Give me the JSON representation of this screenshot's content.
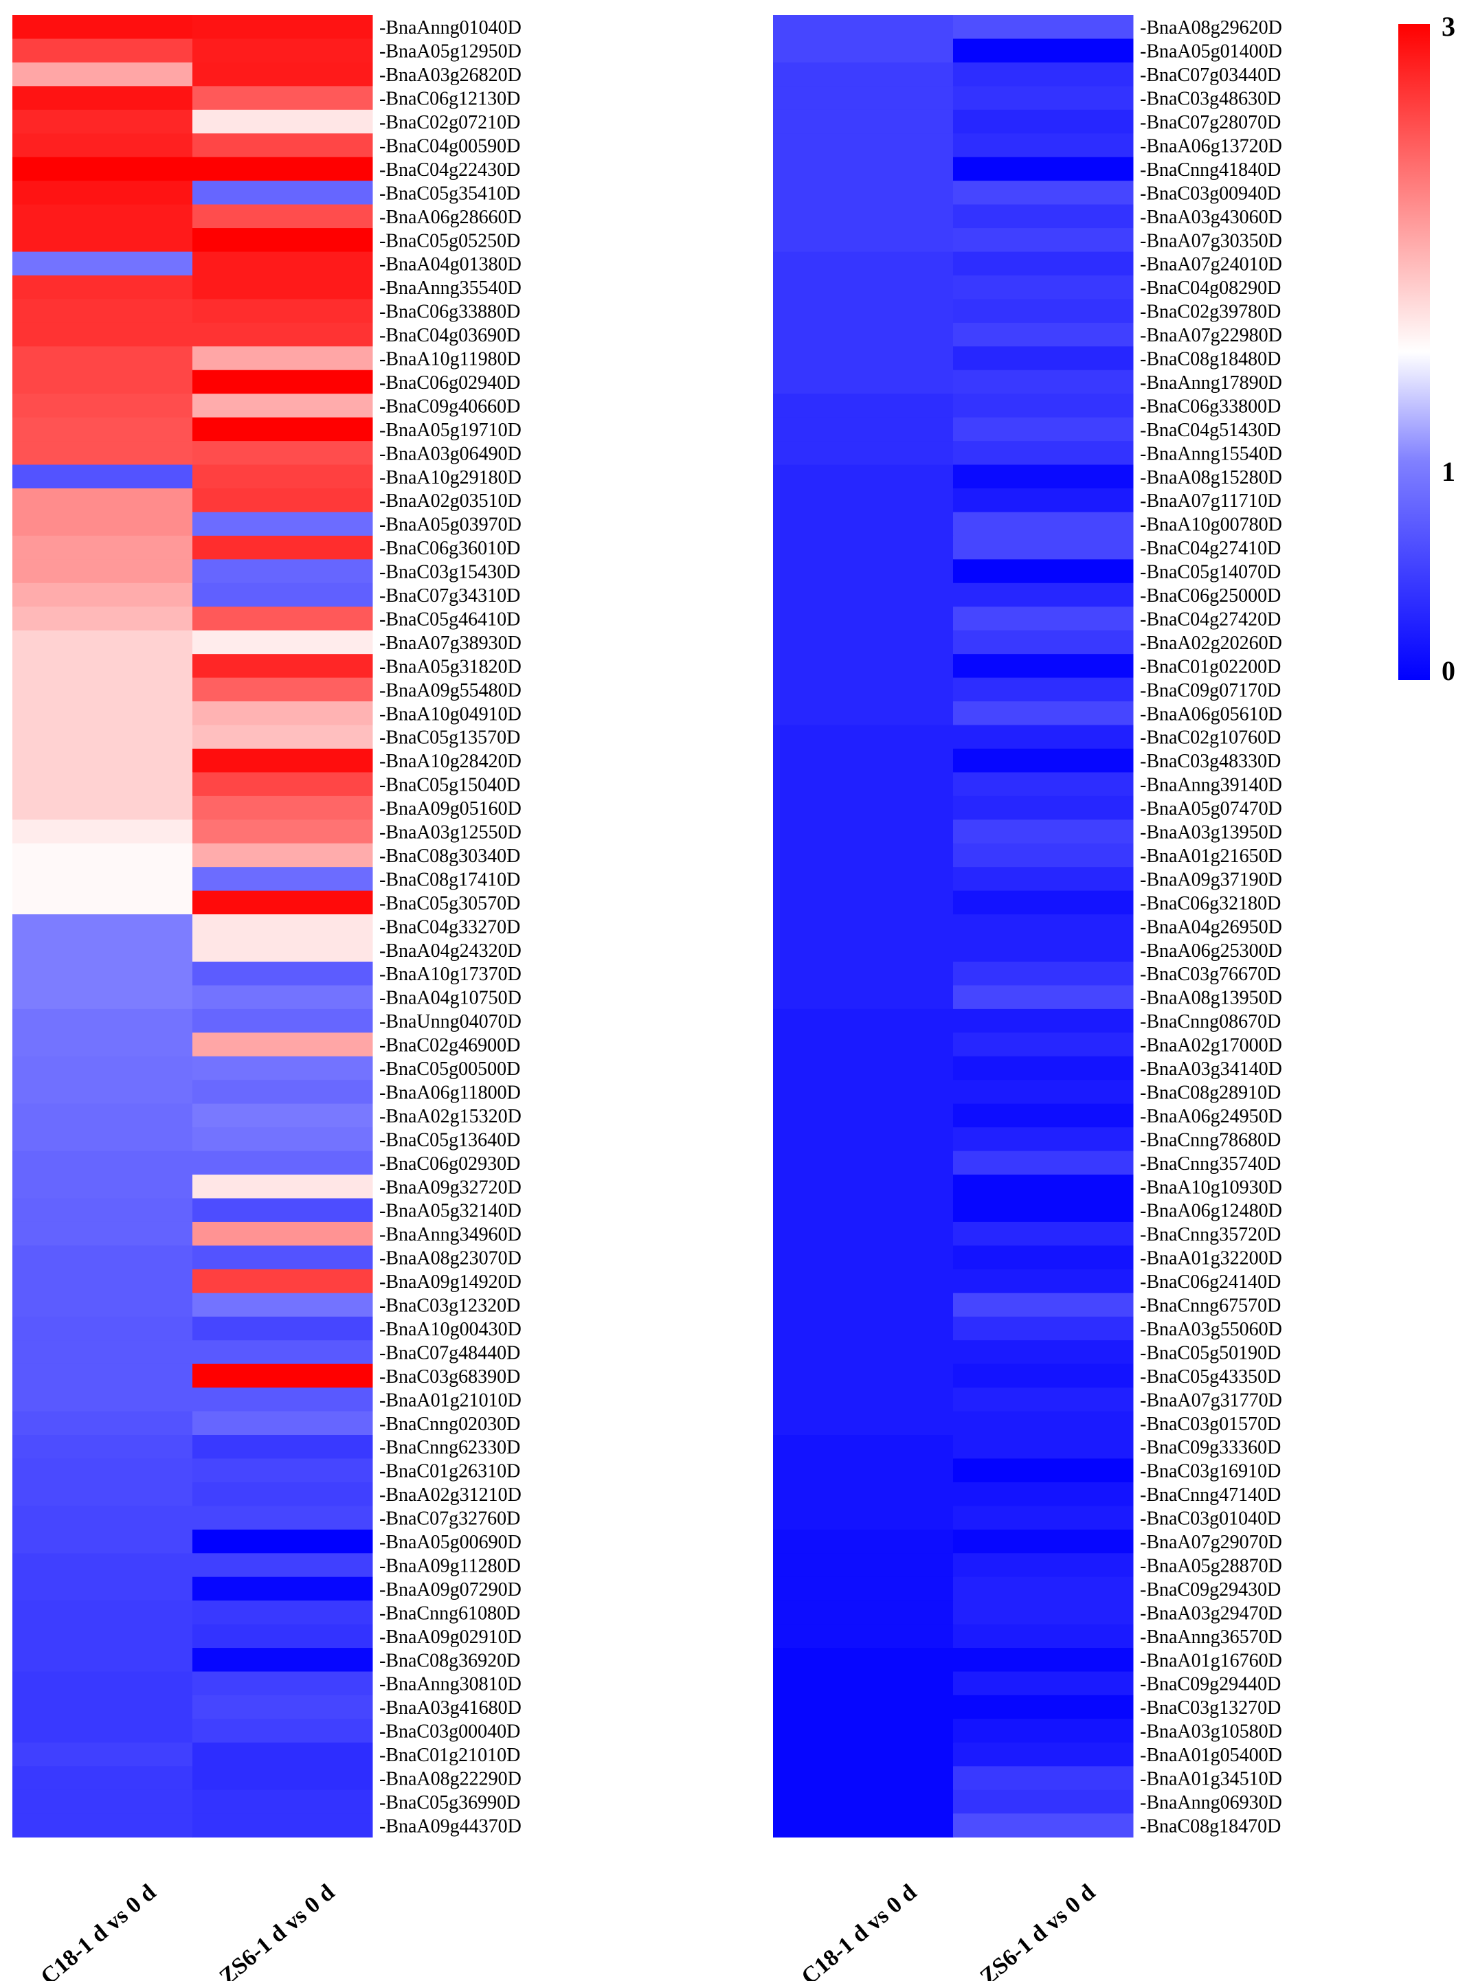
{
  "chart_data": [
    {
      "type": "heatmap",
      "columns": [
        "C18-1 d vs 0 d",
        "ZS6-1 d vs 0 d"
      ],
      "rows": [
        "BnaAnng01040D",
        "BnaA05g12950D",
        "BnaA03g26820D",
        "BnaC06g12130D",
        "BnaC02g07210D",
        "BnaC04g00590D",
        "BnaC04g22430D",
        "BnaC05g35410D",
        "BnaA06g28660D",
        "BnaC05g05250D",
        "BnaA04g01380D",
        "BnaAnng35540D",
        "BnaC06g33880D",
        "BnaC04g03690D",
        "BnaA10g11980D",
        "BnaC06g02940D",
        "BnaC09g40660D",
        "BnaA05g19710D",
        "BnaA03g06490D",
        "BnaA10g29180D",
        "BnaA02g03510D",
        "BnaA05g03970D",
        "BnaC06g36010D",
        "BnaC03g15430D",
        "BnaC07g34310D",
        "BnaC05g46410D",
        "BnaA07g38930D",
        "BnaA05g31820D",
        "BnaA09g55480D",
        "BnaA10g04910D",
        "BnaC05g13570D",
        "BnaA10g28420D",
        "BnaC05g15040D",
        "BnaA09g05160D",
        "BnaA03g12550D",
        "BnaC08g30340D",
        "BnaC08g17410D",
        "BnaC05g30570D",
        "BnaC04g33270D",
        "BnaA04g24320D",
        "BnaA10g17370D",
        "BnaA04g10750D",
        "BnaUnng04070D",
        "BnaC02g46900D",
        "BnaC05g00500D",
        "BnaA06g11800D",
        "BnaA02g15320D",
        "BnaC05g13640D",
        "BnaC06g02930D",
        "BnaA09g32720D",
        "BnaA05g32140D",
        "BnaAnng34960D",
        "BnaA08g23070D",
        "BnaA09g14920D",
        "BnaC03g12320D",
        "BnaA10g00430D",
        "BnaC07g48440D",
        "BnaC03g68390D",
        "BnaA01g21010D",
        "BnaCnng02030D",
        "BnaCnng62330D",
        "BnaC01g26310D",
        "BnaA02g31210D",
        "BnaC07g32760D",
        "BnaA05g00690D",
        "BnaA09g11280D",
        "BnaA09g07290D",
        "BnaCnng61080D",
        "BnaA09g02910D",
        "BnaC08g36920D",
        "BnaAnng30810D",
        "BnaA03g41680D",
        "BnaC03g00040D",
        "BnaC01g21010D",
        "BnaA08g22290D",
        "BnaC05g36990D",
        "BnaA09g44370D"
      ],
      "values": [
        [
          2.88,
          2.85
        ],
        [
          2.5,
          2.78
        ],
        [
          1.7,
          2.8
        ],
        [
          2.85,
          2.3
        ],
        [
          2.7,
          1.2
        ],
        [
          2.75,
          2.45
        ],
        [
          3.0,
          3.0
        ],
        [
          2.85,
          0.8
        ],
        [
          2.8,
          2.4
        ],
        [
          2.8,
          3.0
        ],
        [
          0.9,
          2.8
        ],
        [
          2.65,
          2.8
        ],
        [
          2.6,
          2.65
        ],
        [
          2.6,
          2.6
        ],
        [
          2.45,
          1.7
        ],
        [
          2.45,
          3.0
        ],
        [
          2.4,
          1.65
        ],
        [
          2.35,
          3.0
        ],
        [
          2.35,
          2.4
        ],
        [
          0.65,
          2.5
        ],
        [
          1.9,
          2.55
        ],
        [
          1.9,
          0.85
        ],
        [
          1.8,
          2.65
        ],
        [
          1.8,
          0.8
        ],
        [
          1.65,
          0.75
        ],
        [
          1.55,
          2.3
        ],
        [
          1.35,
          1.15
        ],
        [
          1.35,
          2.7
        ],
        [
          1.35,
          2.25
        ],
        [
          1.35,
          1.6
        ],
        [
          1.35,
          1.5
        ],
        [
          1.35,
          2.9
        ],
        [
          1.35,
          2.45
        ],
        [
          1.35,
          2.2
        ],
        [
          1.15,
          2.1
        ],
        [
          1.05,
          1.65
        ],
        [
          1.05,
          0.85
        ],
        [
          1.05,
          2.92
        ],
        [
          0.98,
          1.2
        ],
        [
          0.98,
          1.2
        ],
        [
          0.98,
          0.72
        ],
        [
          0.98,
          0.9
        ],
        [
          0.9,
          0.8
        ],
        [
          0.9,
          1.7
        ],
        [
          0.88,
          0.9
        ],
        [
          0.88,
          0.82
        ],
        [
          0.85,
          0.95
        ],
        [
          0.85,
          0.9
        ],
        [
          0.8,
          0.8
        ],
        [
          0.8,
          1.2
        ],
        [
          0.78,
          0.6
        ],
        [
          0.78,
          1.85
        ],
        [
          0.72,
          0.65
        ],
        [
          0.72,
          2.5
        ],
        [
          0.72,
          0.9
        ],
        [
          0.7,
          0.55
        ],
        [
          0.7,
          0.7
        ],
        [
          0.7,
          3.0
        ],
        [
          0.7,
          0.7
        ],
        [
          0.65,
          0.8
        ],
        [
          0.6,
          0.45
        ],
        [
          0.58,
          0.55
        ],
        [
          0.58,
          0.5
        ],
        [
          0.55,
          0.55
        ],
        [
          0.55,
          0.0
        ],
        [
          0.5,
          0.5
        ],
        [
          0.5,
          0.05
        ],
        [
          0.48,
          0.45
        ],
        [
          0.48,
          0.4
        ],
        [
          0.48,
          0.05
        ],
        [
          0.45,
          0.5
        ],
        [
          0.45,
          0.55
        ],
        [
          0.45,
          0.5
        ],
        [
          0.5,
          0.35
        ],
        [
          0.45,
          0.35
        ],
        [
          0.45,
          0.4
        ],
        [
          0.45,
          0.4
        ]
      ]
    },
    {
      "type": "heatmap",
      "columns": [
        "C18-1 d vs 0 d",
        "ZS6-1 d vs 0 d"
      ],
      "rows": [
        "BnaA08g29620D",
        "BnaA05g01400D",
        "BnaC07g03440D",
        "BnaC03g48630D",
        "BnaC07g28070D",
        "BnaA06g13720D",
        "BnaCnng41840D",
        "BnaC03g00940D",
        "BnaA03g43060D",
        "BnaA07g30350D",
        "BnaA07g24010D",
        "BnaC04g08290D",
        "BnaC02g39780D",
        "BnaA07g22980D",
        "BnaC08g18480D",
        "BnaAnng17890D",
        "BnaC06g33800D",
        "BnaC04g51430D",
        "BnaAnng15540D",
        "BnaA08g15280D",
        "BnaA07g11710D",
        "BnaA10g00780D",
        "BnaC04g27410D",
        "BnaC05g14070D",
        "BnaC06g25000D",
        "BnaC04g27420D",
        "BnaA02g20260D",
        "BnaC01g02200D",
        "BnaC09g07170D",
        "BnaA06g05610D",
        "BnaC02g10760D",
        "BnaC03g48330D",
        "BnaAnng39140D",
        "BnaA05g07470D",
        "BnaA03g13950D",
        "BnaA01g21650D",
        "BnaA09g37190D",
        "BnaC06g32180D",
        "BnaA04g26950D",
        "BnaA06g25300D",
        "BnaC03g76670D",
        "BnaA08g13950D",
        "BnaCnng08670D",
        "BnaA02g17000D",
        "BnaA03g34140D",
        "BnaC08g28910D",
        "BnaA06g24950D",
        "BnaCnng78680D",
        "BnaCnng35740D",
        "BnaA10g10930D",
        "BnaA06g12480D",
        "BnaCnng35720D",
        "BnaA01g32200D",
        "BnaC06g24140D",
        "BnaCnng67570D",
        "BnaA03g55060D",
        "BnaC05g50190D",
        "BnaC05g43350D",
        "BnaA07g31770D",
        "BnaC03g01570D",
        "BnaC09g33360D",
        "BnaC03g16910D",
        "BnaCnng47140D",
        "BnaC03g01040D",
        "BnaA07g29070D",
        "BnaA05g28870D",
        "BnaC09g29430D",
        "BnaA03g29470D",
        "BnaAnng36570D",
        "BnaA01g16760D",
        "BnaC09g29440D",
        "BnaC03g13270D",
        "BnaA03g10580D",
        "BnaA01g05400D",
        "BnaA01g34510D",
        "BnaAnng06930D",
        "BnaC08g18470D"
      ],
      "values": [
        [
          0.55,
          0.62
        ],
        [
          0.55,
          0.02
        ],
        [
          0.48,
          0.35
        ],
        [
          0.48,
          0.4
        ],
        [
          0.48,
          0.3
        ],
        [
          0.48,
          0.35
        ],
        [
          0.48,
          0.02
        ],
        [
          0.48,
          0.55
        ],
        [
          0.48,
          0.4
        ],
        [
          0.48,
          0.5
        ],
        [
          0.42,
          0.35
        ],
        [
          0.42,
          0.45
        ],
        [
          0.42,
          0.4
        ],
        [
          0.42,
          0.5
        ],
        [
          0.42,
          0.3
        ],
        [
          0.42,
          0.45
        ],
        [
          0.35,
          0.4
        ],
        [
          0.35,
          0.5
        ],
        [
          0.35,
          0.4
        ],
        [
          0.3,
          0.08
        ],
        [
          0.3,
          0.2
        ],
        [
          0.3,
          0.55
        ],
        [
          0.3,
          0.55
        ],
        [
          0.3,
          0.02
        ],
        [
          0.3,
          0.3
        ],
        [
          0.3,
          0.55
        ],
        [
          0.3,
          0.45
        ],
        [
          0.3,
          0.05
        ],
        [
          0.3,
          0.35
        ],
        [
          0.3,
          0.55
        ],
        [
          0.25,
          0.25
        ],
        [
          0.25,
          0.05
        ],
        [
          0.25,
          0.35
        ],
        [
          0.25,
          0.3
        ],
        [
          0.25,
          0.5
        ],
        [
          0.25,
          0.45
        ],
        [
          0.25,
          0.3
        ],
        [
          0.25,
          0.15
        ],
        [
          0.25,
          0.25
        ],
        [
          0.25,
          0.25
        ],
        [
          0.25,
          0.4
        ],
        [
          0.25,
          0.55
        ],
        [
          0.2,
          0.2
        ],
        [
          0.2,
          0.3
        ],
        [
          0.2,
          0.15
        ],
        [
          0.2,
          0.2
        ],
        [
          0.2,
          0.1
        ],
        [
          0.2,
          0.25
        ],
        [
          0.2,
          0.45
        ],
        [
          0.2,
          0.05
        ],
        [
          0.2,
          0.05
        ],
        [
          0.2,
          0.3
        ],
        [
          0.2,
          0.15
        ],
        [
          0.2,
          0.2
        ],
        [
          0.2,
          0.55
        ],
        [
          0.2,
          0.35
        ],
        [
          0.2,
          0.2
        ],
        [
          0.2,
          0.15
        ],
        [
          0.2,
          0.25
        ],
        [
          0.2,
          0.2
        ],
        [
          0.15,
          0.2
        ],
        [
          0.15,
          0.02
        ],
        [
          0.15,
          0.15
        ],
        [
          0.15,
          0.2
        ],
        [
          0.1,
          0.05
        ],
        [
          0.1,
          0.2
        ],
        [
          0.1,
          0.25
        ],
        [
          0.1,
          0.25
        ],
        [
          0.1,
          0.2
        ],
        [
          0.05,
          0.05
        ],
        [
          0.05,
          0.2
        ],
        [
          0.05,
          0.05
        ],
        [
          0.05,
          0.15
        ],
        [
          0.05,
          0.2
        ],
        [
          0.05,
          0.45
        ],
        [
          0.05,
          0.4
        ],
        [
          0.05,
          0.6
        ]
      ]
    }
  ],
  "legend": {
    "min": 0,
    "mid": 1,
    "max": 3,
    "tick_labels": [
      "3",
      "1",
      "0"
    ],
    "colors": {
      "low": "#0000ff",
      "mid": "#ffffff",
      "high": "#ff0000"
    }
  }
}
